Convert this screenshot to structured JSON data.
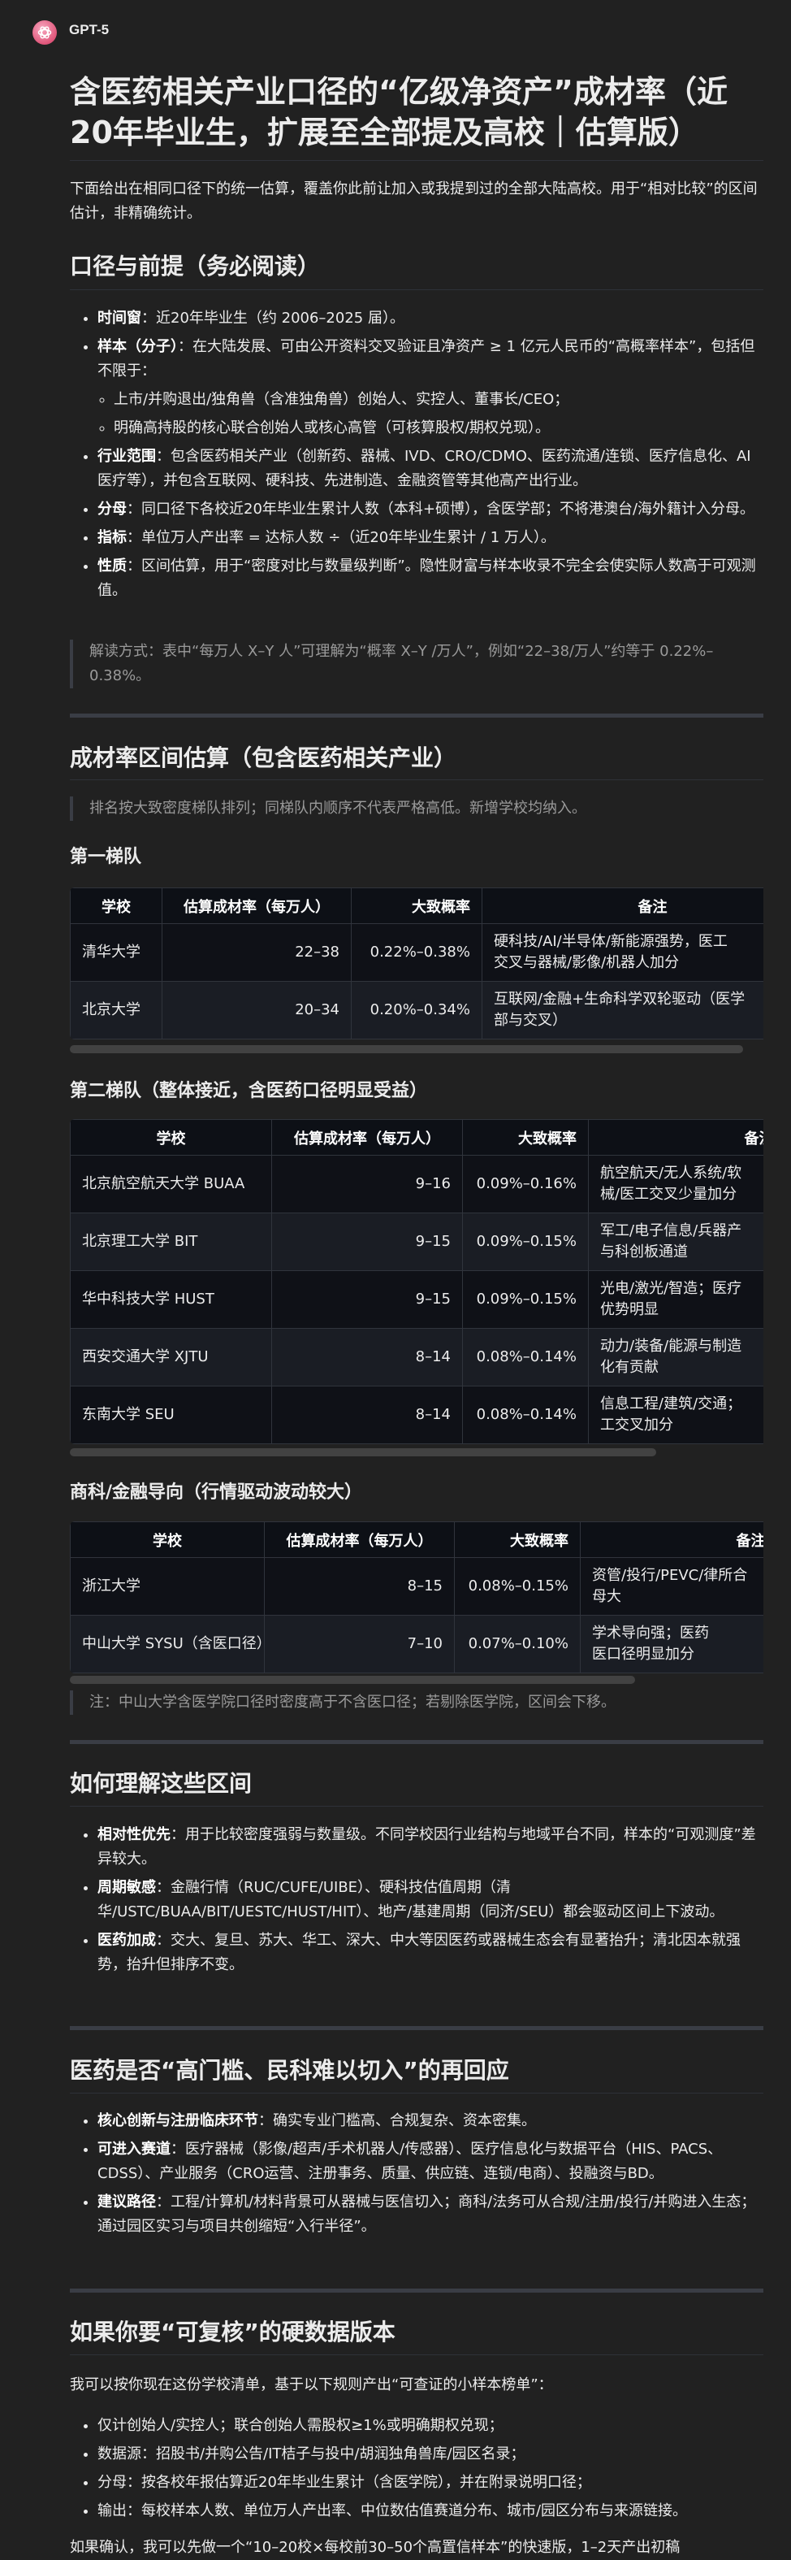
{
  "header": {
    "model_name": "GPT-5",
    "logo_icon": "openai-logo-icon"
  },
  "title": "含医药相关产业口径的“亿级净资产”成材率（近20年毕业生，扩展至全部提及高校｜估算版）",
  "intro": "下面给出在相同口径下的统一估算，覆盖你此前让加入或我提到过的全部大陆高校。用于“相对比较”的区间估计，非精确统计。",
  "scope": {
    "heading": "口径与前提（务必阅读）",
    "items": [
      {
        "label": "时间窗",
        "text": "：近20年毕业生（约 2006–2025 届）。"
      },
      {
        "label": "样本（分子）",
        "text": "：在大陆发展、可由公开资料交叉验证且净资产 ≥ 1 亿元人民币的“高概率样本”，包括但不限于：",
        "sub": [
          "上市/并购退出/独角兽（含准独角兽）创始人、实控人、董事长/CEO；",
          "明确高持股的核心联合创始人或核心高管（可核算股权/期权兑现）。"
        ]
      },
      {
        "label": "行业范围",
        "text": "：包含医药相关产业（创新药、器械、IVD、CRO/CDMO、医药流通/连锁、医疗信息化、AI 医疗等），并包含互联网、硬科技、先进制造、金融资管等其他高产出行业。"
      },
      {
        "label": "分母",
        "text": "：同口径下各校近20年毕业生累计人数（本科+硕博），含医学部；不将港澳台/海外籍计入分母。"
      },
      {
        "label": "指标",
        "text": "：单位万人产出率 = 达标人数 ÷（近20年毕业生累计 / 1 万人）。"
      },
      {
        "label": "性质",
        "text": "：区间估算，用于“密度对比与数量级判断”。隐性财富与样本收录不完全会使实际人数高于可观测值。"
      }
    ],
    "note": "解读方式：表中“每万人 X–Y 人”可理解为“概率 X–Y /万人”，例如“22–38/万人”约等于 0.22%–0.38%。"
  },
  "estimates": {
    "heading": "成材率区间估算（包含医药相关产业）",
    "note": "排名按大致密度梯队排列；同梯队内顺序不代表严格高低。新增学校均纳入。",
    "columns": [
      "学校",
      "估算成材率（每万人）",
      "大致概率",
      "备注"
    ],
    "tiers": [
      {
        "heading": "第一梯队",
        "rows": [
          {
            "school": "清华大学",
            "rate": "22–38",
            "prob": "0.22%–0.38%",
            "note": [
              "硬科技/AI/半导体/新能源强势，医工",
              "交叉与器械/影像/机器人加分"
            ]
          },
          {
            "school": "北京大学",
            "rate": "20–34",
            "prob": "0.20%–0.34%",
            "note": [
              "互联网/金融+生命科学双轮驱动（医学",
              "部与交叉）"
            ]
          }
        ]
      },
      {
        "heading": "第二梯队（整体接近，含医药口径明显受益）",
        "rows": [
          {
            "school": "北京航空航天大学 BUAA",
            "rate": "9–16",
            "prob": "0.09%–0.16%",
            "note": [
              "航空航天/无人系统/软",
              "械/医工交叉少量加分"
            ]
          },
          {
            "school": "北京理工大学 BIT",
            "rate": "9–15",
            "prob": "0.09%–0.15%",
            "note": [
              "军工/电子信息/兵器产",
              "与科创板通道"
            ]
          },
          {
            "school": "华中科技大学 HUST",
            "rate": "9–15",
            "prob": "0.09%–0.15%",
            "note": [
              "光电/激光/智造；医疗",
              "优势明显"
            ]
          },
          {
            "school": "西安交通大学 XJTU",
            "rate": "8–14",
            "prob": "0.08%–0.14%",
            "note": [
              "动力/装备/能源与制造",
              "化有贡献"
            ]
          },
          {
            "school": "东南大学 SEU",
            "rate": "8–14",
            "prob": "0.08%–0.14%",
            "note": [
              "信息工程/建筑/交通；",
              "工交叉加分"
            ]
          }
        ]
      },
      {
        "heading": "商科/金融导向（行情驱动波动较大）",
        "rows": [
          {
            "school": "浙江大学",
            "rate": "8–15",
            "prob": "0.08%–0.15%",
            "note": [
              "资管/投行/PEVC/律所合",
              "母大"
            ]
          },
          {
            "school": "中山大学 SYSU（含医口径）",
            "rate": "7–10",
            "prob": "0.07%–0.10%",
            "note": [
              "学术导向强；医药",
              "医口径明显加分"
            ]
          }
        ]
      }
    ],
    "footnote": "注：中山大学含医学院口径时密度高于不含医口径；若剔除医学院，区间会下移。"
  },
  "understanding": {
    "heading": "如何理解这些区间",
    "items": [
      {
        "label": "相对性优先",
        "text": "：用于比较密度强弱与数量级。不同学校因行业结构与地域平台不同，样本的“可观测度”差异较大。"
      },
      {
        "label": "周期敏感",
        "text": "：金融行情（RUC/CUFE/UIBE）、硬科技估值周期（清华/USTC/BUAA/BIT/UESTC/HUST/HIT）、地产/基建周期（同济/SEU）都会驱动区间上下波动。"
      },
      {
        "label": "医药加成",
        "text": "：交大、复旦、苏大、华工、深大、中大等因医药或器械生态会有显著抬升；清北因本就强势，抬升但排序不变。"
      }
    ]
  },
  "pharma": {
    "heading": "医药是否“高门槛、民科难以切入”的再回应",
    "items": [
      {
        "label": "核心创新与注册临床环节",
        "text": "：确实专业门槛高、合规复杂、资本密集。"
      },
      {
        "label": "可进入赛道",
        "text": "：医疗器械（影像/超声/手术机器人/传感器）、医疗信息化与数据平台（HIS、PACS、CDSS）、产业服务（CRO运营、注册事务、质量、供应链、连锁/电商）、投融资与BD。"
      },
      {
        "label": "建议路径",
        "text": "：工程/计算机/材料背景可从器械与医信切入；商科/法务可从合规/注册/投行/并购进入生态；通过园区实习与项目共创缩短“入行半径”。"
      }
    ]
  },
  "hard_data": {
    "heading": "如果你要“可复核”的硬数据版本",
    "intro": "我可以按你现在这份学校清单，基于以下规则产出“可查证的小样本榜单”：",
    "items": [
      "仅计创始人/实控人；联合创始人需股权≥1%或明确期权兑现；",
      "数据源：招股书/并购公告/IT桔子与投中/胡润独角兽库/园区名录；",
      "分母：按各校年报估算近20年毕业生累计（含医学院），并在附录说明口径；",
      "输出：每校样本人数、单位万人产出率、中位数估值赛道分布、城市/园区分布与来源链接。"
    ],
    "closing": "如果确认，我可以先做一个“10–20校×每校前30–50个高置信样本”的快速版，1–2天产出初稿"
  }
}
